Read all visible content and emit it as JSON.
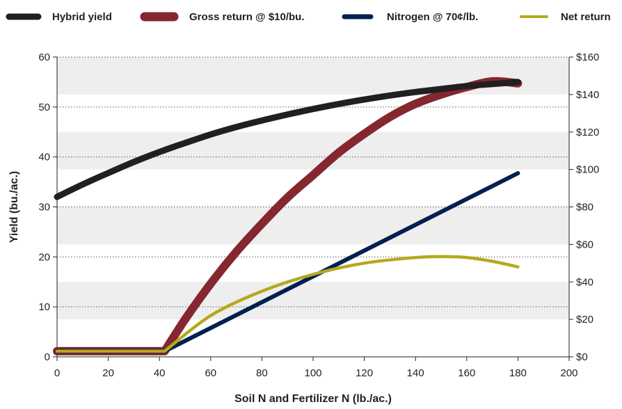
{
  "chart_data": {
    "type": "line",
    "xlabel": "Soil N and Fertilizer N (lb./ac.)",
    "ylabel_left": "Yield (bu./ac.)",
    "xlim": [
      0,
      200
    ],
    "ylim_left": [
      0,
      60
    ],
    "ylim_right": [
      0,
      160
    ],
    "x_ticks": [
      "0",
      "20",
      "40",
      "60",
      "80",
      "100",
      "120",
      "140",
      "160",
      "180",
      "200"
    ],
    "y_left_ticks": [
      "0",
      "10",
      "20",
      "30",
      "40",
      "50",
      "60"
    ],
    "y_right_ticks": [
      "$0",
      "$20",
      "$40",
      "$60",
      "$80",
      "$100",
      "$120",
      "$140",
      "$160"
    ],
    "grid": "horizontal dotted lines with alternating light gray bands",
    "legend_position": "top",
    "series": [
      {
        "name": "Hybrid yield",
        "axis": "left",
        "color": "#231f20",
        "x": [
          0,
          10,
          20,
          30,
          40,
          50,
          60,
          70,
          80,
          90,
          100,
          110,
          120,
          130,
          140,
          150,
          160,
          170,
          180
        ],
        "values": [
          32,
          34.5,
          36.8,
          39.0,
          41.0,
          42.8,
          44.5,
          46.0,
          47.3,
          48.5,
          49.6,
          50.6,
          51.5,
          52.3,
          53.0,
          53.6,
          54.2,
          54.6,
          55.0
        ]
      },
      {
        "name": "Gross return @ $10/bu.",
        "axis": "right",
        "color": "#84272f",
        "x": [
          0,
          42,
          50,
          60,
          70,
          80,
          90,
          100,
          110,
          120,
          130,
          140,
          150,
          160,
          170,
          180
        ],
        "values": [
          3,
          3,
          20,
          39,
          56,
          71,
          85,
          97,
          109,
          119,
          128,
          135,
          140,
          144,
          147,
          146
        ]
      },
      {
        "name": "Nitrogen @ 70¢/lb.",
        "axis": "right",
        "color": "#00204f",
        "x": [
          0,
          42,
          180
        ],
        "values": [
          3,
          3,
          98
        ]
      },
      {
        "name": "Net return",
        "axis": "right",
        "color": "#b5a91f",
        "x": [
          0,
          42,
          60,
          80,
          100,
          120,
          140,
          150,
          160,
          170,
          180
        ],
        "values": [
          3,
          3,
          22,
          35,
          44,
          50,
          53,
          53.5,
          53,
          51,
          48
        ]
      }
    ]
  }
}
